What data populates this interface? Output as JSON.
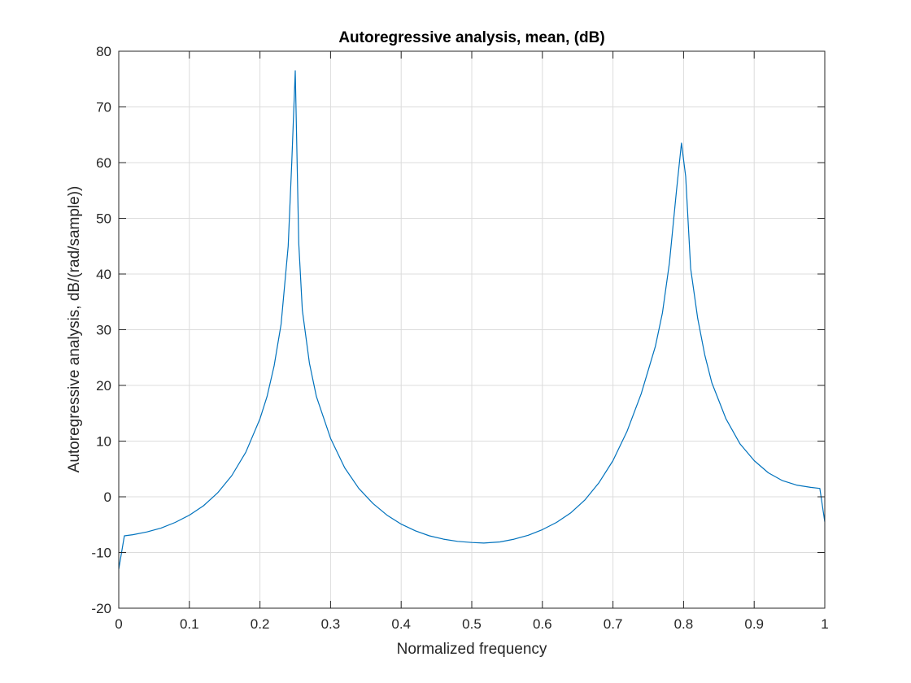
{
  "chart_data": {
    "type": "line",
    "title": "Autoregressive analysis, mean, (dB)",
    "xlabel": "Normalized frequency",
    "ylabel": "Autoregressive analysis, dB/(rad/sample))",
    "xlim": [
      0,
      1
    ],
    "ylim": [
      -20,
      80
    ],
    "xticks": [
      "0",
      "0.1",
      "0.2",
      "0.3",
      "0.4",
      "0.5",
      "0.6",
      "0.7",
      "0.8",
      "0.9",
      "1"
    ],
    "yticks": [
      "-20",
      "-10",
      "0",
      "10",
      "20",
      "30",
      "40",
      "50",
      "60",
      "70",
      "80"
    ],
    "grid": true,
    "legend": "none",
    "colors": {
      "line": "#0072BD",
      "grid": "#dcdcdc",
      "axis": "#262626"
    },
    "series": [
      {
        "x": [
          0,
          0.008,
          0.02,
          0.04,
          0.06,
          0.08,
          0.1,
          0.12,
          0.14,
          0.16,
          0.18,
          0.2,
          0.21,
          0.22,
          0.23,
          0.24,
          0.245,
          0.25,
          0.255,
          0.26,
          0.27,
          0.28,
          0.3,
          0.32,
          0.34,
          0.36,
          0.38,
          0.4,
          0.42,
          0.44,
          0.46,
          0.48,
          0.5,
          0.517,
          0.54,
          0.56,
          0.58,
          0.6,
          0.62,
          0.64,
          0.66,
          0.68,
          0.7,
          0.72,
          0.74,
          0.76,
          0.77,
          0.78,
          0.79,
          0.797,
          0.803,
          0.81,
          0.82,
          0.83,
          0.84,
          0.86,
          0.88,
          0.9,
          0.92,
          0.94,
          0.96,
          0.98,
          0.993,
          1.0
        ],
        "y": [
          -13,
          -7,
          -6.8,
          -6.3,
          -5.6,
          -4.6,
          -3.3,
          -1.6,
          0.7,
          3.8,
          8.0,
          14.0,
          18.0,
          23.5,
          31.0,
          45.0,
          60.0,
          76.5,
          45.5,
          33.5,
          24.0,
          18.0,
          10.5,
          5.2,
          1.5,
          -1.2,
          -3.3,
          -4.9,
          -6.1,
          -7.0,
          -7.6,
          -8.0,
          -8.2,
          -8.3,
          -8.1,
          -7.6,
          -6.9,
          -5.9,
          -4.6,
          -2.9,
          -0.6,
          2.5,
          6.5,
          11.8,
          18.5,
          27.0,
          33.0,
          42.0,
          55.0,
          63.5,
          57.5,
          41.0,
          32.0,
          25.5,
          20.5,
          14.0,
          9.5,
          6.5,
          4.3,
          2.9,
          2.1,
          1.7,
          1.5,
          -4.5
        ]
      }
    ]
  }
}
